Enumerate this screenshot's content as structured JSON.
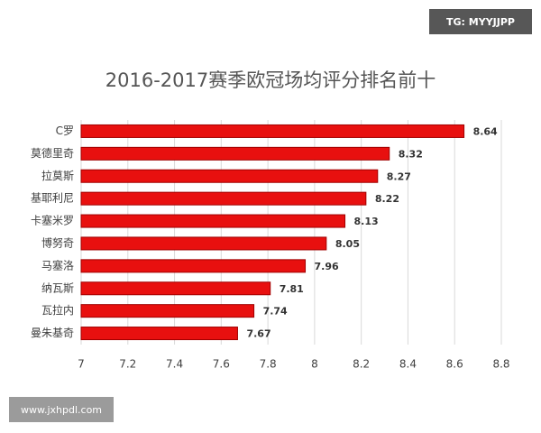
{
  "chart_data": {
    "type": "hbar",
    "title": "2016-2017赛季欧冠场均评分排名前十",
    "categories": [
      "C罗",
      "莫德里奇",
      "拉莫斯",
      "基耶利尼",
      "卡塞米罗",
      "博努奇",
      "马塞洛",
      "纳瓦斯",
      "瓦拉内",
      "曼朱基奇"
    ],
    "values": [
      8.64,
      8.32,
      8.27,
      8.22,
      8.13,
      8.05,
      7.96,
      7.81,
      7.74,
      7.67
    ],
    "color": "#e8100f",
    "xlim": [
      7,
      8.8
    ],
    "xticks": [
      7,
      7.2,
      7.4,
      7.6,
      7.8,
      8,
      8.2,
      8.4,
      8.6,
      8.8
    ],
    "grid": true,
    "annotations": [
      "TG: MYYJJPP",
      "www.jxhpdl.com"
    ]
  }
}
